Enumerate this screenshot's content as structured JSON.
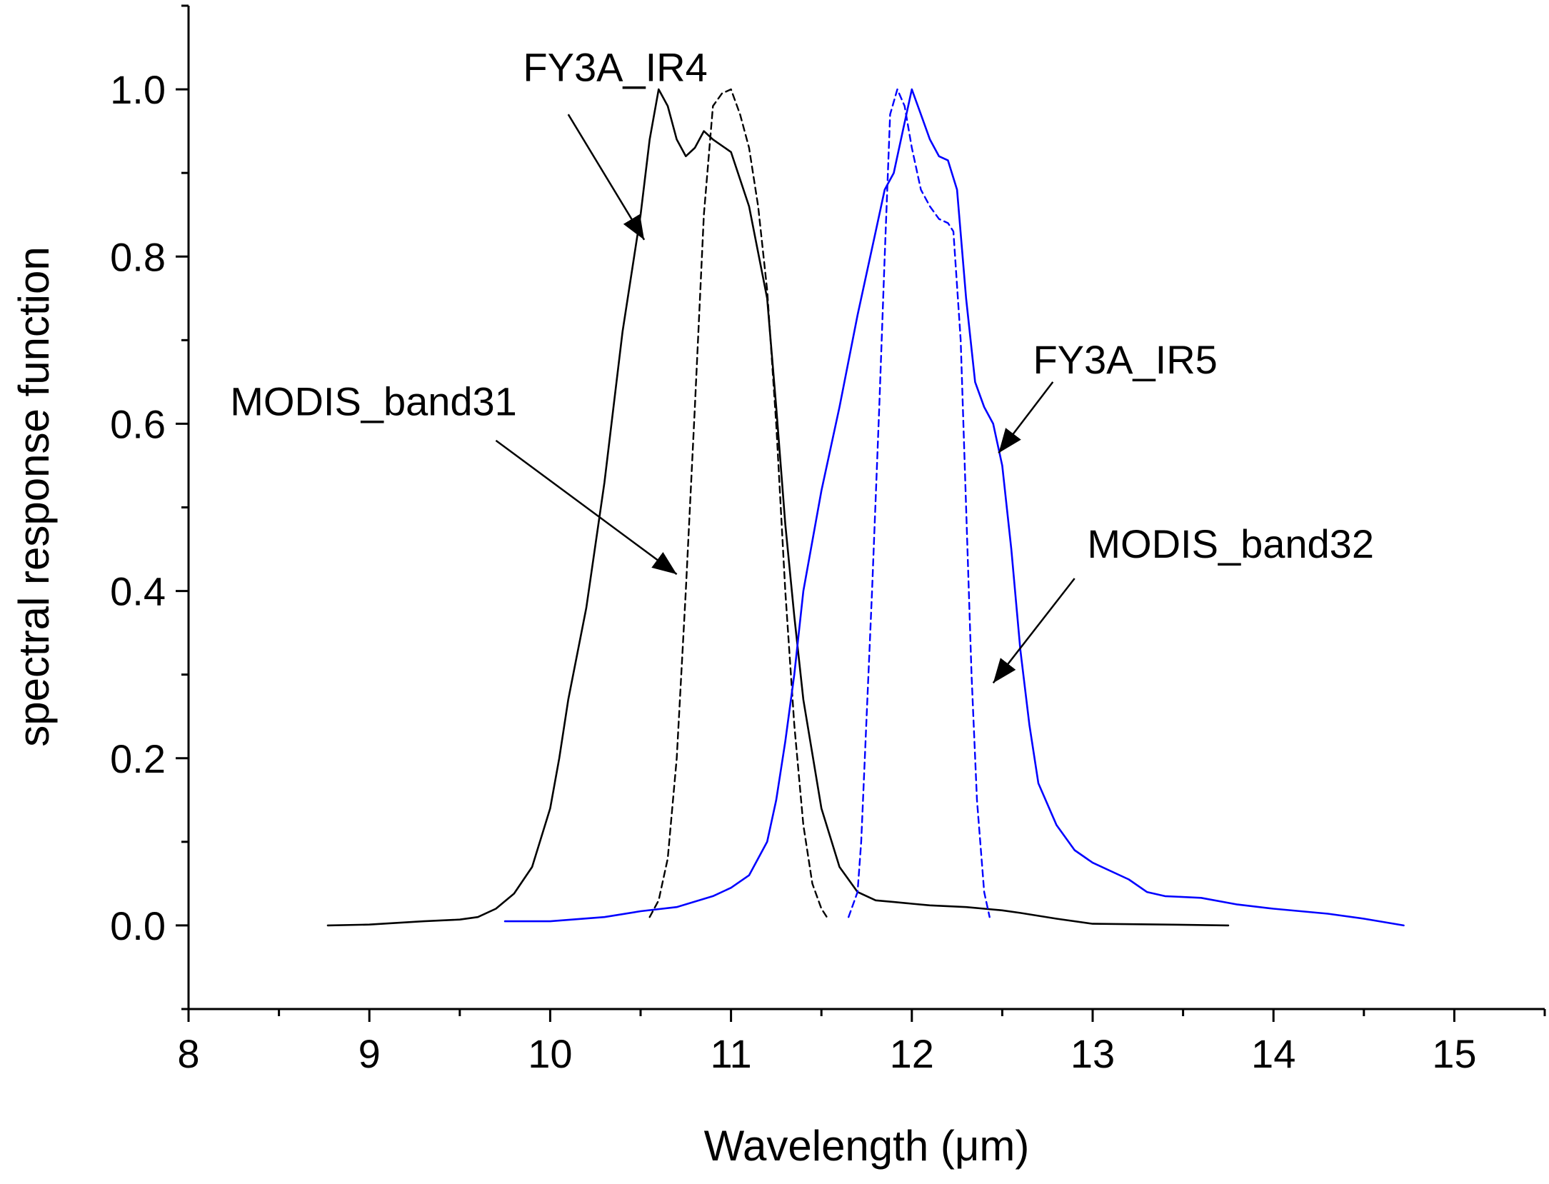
{
  "chart_data": {
    "type": "line",
    "title": "",
    "xlabel": "Wavelength (μm)",
    "ylabel": "spectral response function",
    "xlim": [
      8,
      15.5
    ],
    "ylim": [
      -0.1,
      1.1
    ],
    "xticks": [
      8,
      9,
      10,
      11,
      12,
      13,
      14,
      15
    ],
    "xtick_labels": [
      "8",
      "9",
      "10",
      "11",
      "12",
      "13",
      "14",
      "15"
    ],
    "yticks": [
      0.0,
      0.2,
      0.4,
      0.6,
      0.8,
      1.0
    ],
    "ytick_labels": [
      "0.0",
      "0.2",
      "0.4",
      "0.6",
      "0.8",
      "1.0"
    ],
    "grid": false,
    "series": [
      {
        "name": "FY3A_IR4",
        "color": "#000000",
        "dash": "solid",
        "points": [
          [
            8.77,
            0.0
          ],
          [
            9.0,
            0.001
          ],
          [
            9.3,
            0.005
          ],
          [
            9.5,
            0.007
          ],
          [
            9.6,
            0.01
          ],
          [
            9.7,
            0.02
          ],
          [
            9.8,
            0.038
          ],
          [
            9.9,
            0.07
          ],
          [
            10.0,
            0.14
          ],
          [
            10.05,
            0.2
          ],
          [
            10.1,
            0.27
          ],
          [
            10.2,
            0.38
          ],
          [
            10.3,
            0.53
          ],
          [
            10.4,
            0.71
          ],
          [
            10.5,
            0.85
          ],
          [
            10.55,
            0.94
          ],
          [
            10.6,
            1.0
          ],
          [
            10.65,
            0.98
          ],
          [
            10.7,
            0.94
          ],
          [
            10.75,
            0.92
          ],
          [
            10.8,
            0.93
          ],
          [
            10.85,
            0.95
          ],
          [
            10.9,
            0.94
          ],
          [
            11.0,
            0.925
          ],
          [
            11.1,
            0.86
          ],
          [
            11.2,
            0.75
          ],
          [
            11.25,
            0.62
          ],
          [
            11.3,
            0.48
          ],
          [
            11.35,
            0.37
          ],
          [
            11.4,
            0.27
          ],
          [
            11.5,
            0.14
          ],
          [
            11.6,
            0.07
          ],
          [
            11.7,
            0.04
          ],
          [
            11.8,
            0.03
          ],
          [
            11.9,
            0.028
          ],
          [
            12.0,
            0.026
          ],
          [
            12.1,
            0.024
          ],
          [
            12.3,
            0.022
          ],
          [
            12.4,
            0.02
          ],
          [
            12.5,
            0.018
          ],
          [
            12.6,
            0.015
          ],
          [
            12.8,
            0.008
          ],
          [
            13.0,
            0.002
          ],
          [
            13.4,
            0.001
          ],
          [
            13.75,
            0.0
          ]
        ]
      },
      {
        "name": "MODIS_band31",
        "color": "#000000",
        "dash": "dashed",
        "points": [
          [
            10.55,
            0.01
          ],
          [
            10.6,
            0.03
          ],
          [
            10.65,
            0.08
          ],
          [
            10.7,
            0.2
          ],
          [
            10.75,
            0.4
          ],
          [
            10.8,
            0.62
          ],
          [
            10.85,
            0.85
          ],
          [
            10.9,
            0.98
          ],
          [
            10.95,
            0.995
          ],
          [
            11.0,
            1.0
          ],
          [
            11.05,
            0.97
          ],
          [
            11.1,
            0.93
          ],
          [
            11.15,
            0.86
          ],
          [
            11.2,
            0.76
          ],
          [
            11.25,
            0.6
          ],
          [
            11.3,
            0.4
          ],
          [
            11.35,
            0.24
          ],
          [
            11.4,
            0.12
          ],
          [
            11.45,
            0.05
          ],
          [
            11.5,
            0.02
          ],
          [
            11.53,
            0.01
          ]
        ]
      },
      {
        "name": "FY3A_IR5",
        "color": "#0000ff",
        "dash": "solid",
        "points": [
          [
            9.75,
            0.005
          ],
          [
            10.0,
            0.005
          ],
          [
            10.3,
            0.01
          ],
          [
            10.5,
            0.017
          ],
          [
            10.7,
            0.022
          ],
          [
            10.9,
            0.035
          ],
          [
            11.0,
            0.045
          ],
          [
            11.1,
            0.06
          ],
          [
            11.2,
            0.1
          ],
          [
            11.25,
            0.15
          ],
          [
            11.3,
            0.22
          ],
          [
            11.35,
            0.3
          ],
          [
            11.4,
            0.4
          ],
          [
            11.5,
            0.52
          ],
          [
            11.6,
            0.62
          ],
          [
            11.7,
            0.73
          ],
          [
            11.8,
            0.83
          ],
          [
            11.85,
            0.88
          ],
          [
            11.9,
            0.9
          ],
          [
            11.95,
            0.95
          ],
          [
            12.0,
            1.0
          ],
          [
            12.05,
            0.97
          ],
          [
            12.1,
            0.94
          ],
          [
            12.15,
            0.92
          ],
          [
            12.2,
            0.915
          ],
          [
            12.25,
            0.88
          ],
          [
            12.3,
            0.75
          ],
          [
            12.35,
            0.65
          ],
          [
            12.4,
            0.62
          ],
          [
            12.45,
            0.6
          ],
          [
            12.5,
            0.55
          ],
          [
            12.55,
            0.45
          ],
          [
            12.6,
            0.33
          ],
          [
            12.65,
            0.24
          ],
          [
            12.7,
            0.17
          ],
          [
            12.8,
            0.12
          ],
          [
            12.9,
            0.09
          ],
          [
            13.0,
            0.075
          ],
          [
            13.2,
            0.055
          ],
          [
            13.3,
            0.04
          ],
          [
            13.4,
            0.035
          ],
          [
            13.6,
            0.033
          ],
          [
            13.8,
            0.025
          ],
          [
            14.0,
            0.02
          ],
          [
            14.3,
            0.014
          ],
          [
            14.5,
            0.008
          ],
          [
            14.72,
            0.0
          ]
        ]
      },
      {
        "name": "MODIS_band32",
        "color": "#0000ff",
        "dash": "dashed",
        "points": [
          [
            11.65,
            0.01
          ],
          [
            11.7,
            0.04
          ],
          [
            11.72,
            0.1
          ],
          [
            11.75,
            0.25
          ],
          [
            11.78,
            0.4
          ],
          [
            11.82,
            0.62
          ],
          [
            11.85,
            0.8
          ],
          [
            11.88,
            0.97
          ],
          [
            11.92,
            1.0
          ],
          [
            11.96,
            0.98
          ],
          [
            12.0,
            0.93
          ],
          [
            12.05,
            0.88
          ],
          [
            12.1,
            0.86
          ],
          [
            12.15,
            0.845
          ],
          [
            12.2,
            0.84
          ],
          [
            12.23,
            0.83
          ],
          [
            12.27,
            0.7
          ],
          [
            12.3,
            0.5
          ],
          [
            12.33,
            0.3
          ],
          [
            12.36,
            0.15
          ],
          [
            12.4,
            0.04
          ],
          [
            12.43,
            0.01
          ]
        ]
      }
    ],
    "annotations": [
      {
        "text": "FY3A_IR4",
        "color": "#000000",
        "text_at": [
          9.85,
          1.01
        ],
        "arrow_from": [
          10.1,
          0.97
        ],
        "arrow_to": [
          10.52,
          0.82
        ]
      },
      {
        "text": "MODIS_band31",
        "color": "#000000",
        "text_at": [
          8.23,
          0.61
        ],
        "arrow_from": [
          9.7,
          0.58
        ],
        "arrow_to": [
          10.7,
          0.42
        ]
      },
      {
        "text": "FY3A_IR5",
        "color": "#000000",
        "text_at": [
          12.67,
          0.66
        ],
        "arrow_from": [
          12.78,
          0.65
        ],
        "arrow_to": [
          12.48,
          0.565
        ]
      },
      {
        "text": "MODIS_band32",
        "color": "#000000",
        "text_at": [
          12.97,
          0.44
        ],
        "arrow_from": [
          12.9,
          0.415
        ],
        "arrow_to": [
          12.45,
          0.29
        ]
      }
    ]
  }
}
